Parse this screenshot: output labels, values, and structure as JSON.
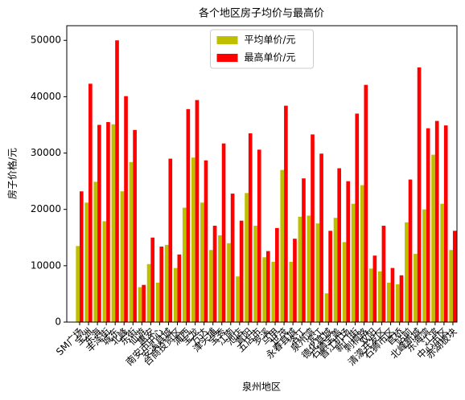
{
  "chart_data": {
    "type": "bar",
    "title": "各个地区房子均价与最高价",
    "x_label": "泉州地区",
    "y_label": "房子价格/元",
    "categories": [
      "SM广场",
      "宝洲",
      "东海",
      "丰泽街",
      "城东",
      "北峰",
      "东街",
      "仙游",
      "惠安",
      "南安市中心",
      "安溪县城",
      "台商投资区",
      "浦西",
      "宝龙",
      "万达",
      "津头埔",
      "宝秀",
      "江南",
      "池店",
      "青阳",
      "五店市",
      "罗溪",
      "马甲",
      "世茂",
      "永春县城",
      "洛江",
      "泉州湾",
      "滨江",
      "德化县城",
      "石狮宝盖",
      "晋江机场",
      "新门街",
      "刺桐路",
      "双阳",
      "清濛开发区",
      "石狮市区",
      "官桥",
      "站前",
      "北峰新城",
      "东海湾",
      "江滨",
      "中心市区",
      "赤湖板块"
    ],
    "series": [
      {
        "name": "平均单价/元",
        "color": "#bfbf00",
        "values": [
          13500,
          21200,
          24900,
          17900,
          35100,
          23200,
          28400,
          6200,
          10300,
          7000,
          13700,
          9600,
          20300,
          29200,
          21200,
          12800,
          15400,
          14000,
          8100,
          22900,
          17100,
          11500,
          10700,
          27000,
          10700,
          18700,
          18900,
          17500,
          5100,
          18500,
          14200,
          21000,
          24300,
          9500,
          9000,
          7000,
          6700,
          17700,
          12100,
          20000,
          29700,
          21000,
          12800
        ]
      },
      {
        "name": "最高单价/元",
        "color": "#ff0000",
        "values": [
          23200,
          42300,
          35000,
          35500,
          50000,
          40100,
          34100,
          6600,
          15000,
          13400,
          29000,
          12000,
          37800,
          39400,
          28700,
          17100,
          31700,
          22800,
          18000,
          33500,
          30600,
          12600,
          16700,
          38400,
          14800,
          25500,
          33300,
          29900,
          16200,
          27300,
          25000,
          37000,
          42100,
          11800,
          17100,
          9600,
          8300,
          25300,
          45200,
          34400,
          35700,
          34900,
          16200
        ]
      }
    ],
    "ylim": [
      0,
      52600
    ],
    "yticks": [
      0,
      10000,
      20000,
      30000,
      40000,
      50000
    ],
    "legend": "upper center"
  }
}
